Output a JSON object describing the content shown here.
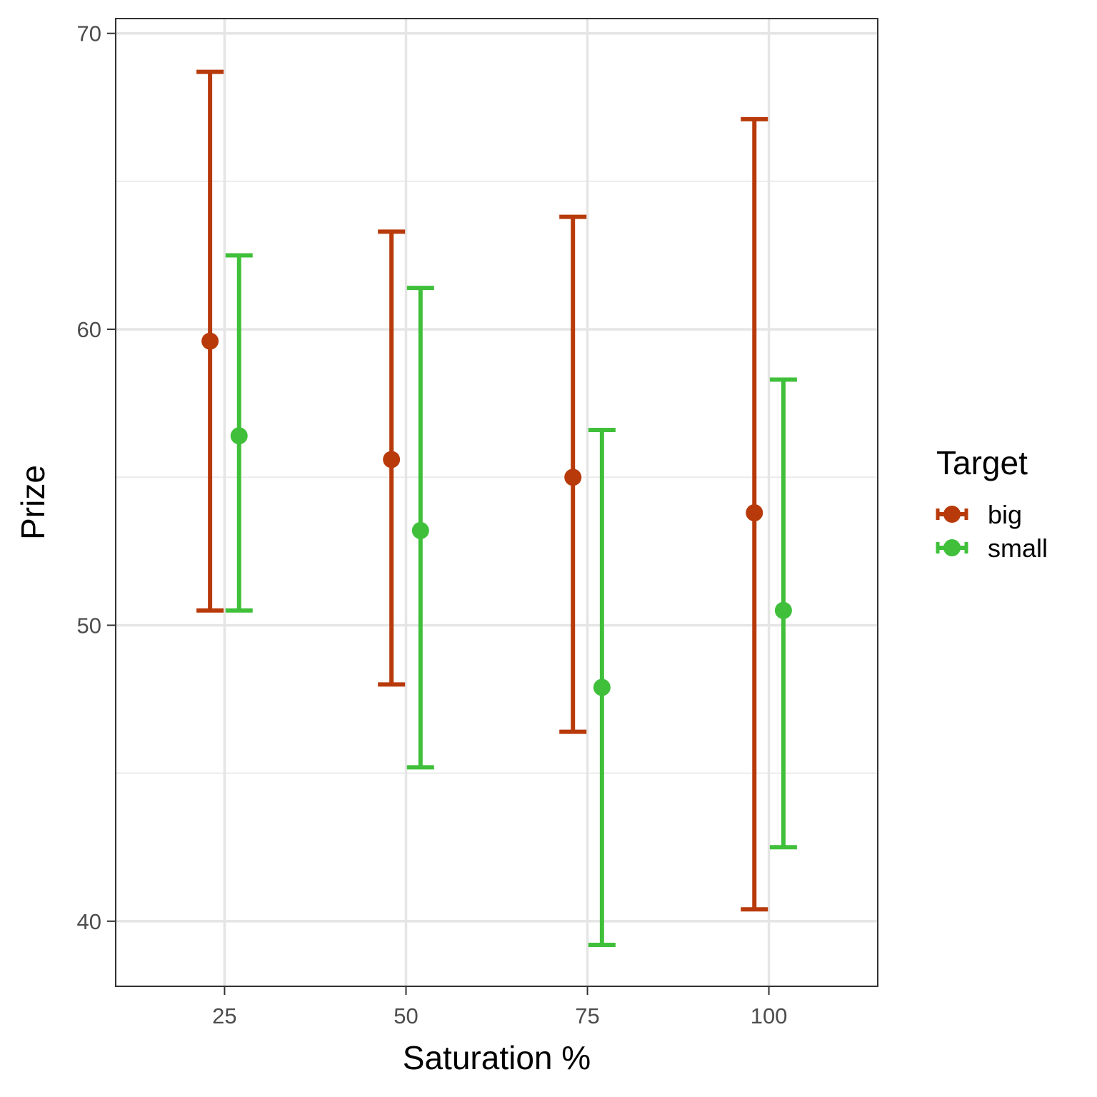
{
  "chart_data": {
    "type": "errorbar",
    "xlabel": "Saturation %",
    "ylabel": "Prize",
    "x_ticks": [
      25,
      50,
      75,
      100
    ],
    "y_ticks": [
      40,
      50,
      60,
      70
    ],
    "xlim": [
      10,
      115
    ],
    "ylim": [
      37.8,
      70.5
    ],
    "grid": true,
    "legend": {
      "title": "Target",
      "position": "right"
    },
    "series": [
      {
        "name": "big",
        "color": "#B83A0B",
        "points": [
          {
            "x": 25,
            "y": 59.6,
            "ymin": 50.5,
            "ymax": 68.7
          },
          {
            "x": 50,
            "y": 55.6,
            "ymin": 48.0,
            "ymax": 63.3
          },
          {
            "x": 75,
            "y": 55.0,
            "ymin": 46.4,
            "ymax": 63.8
          },
          {
            "x": 100,
            "y": 53.8,
            "ymin": 40.4,
            "ymax": 67.1
          }
        ]
      },
      {
        "name": "small",
        "color": "#40C03A",
        "points": [
          {
            "x": 25,
            "y": 56.4,
            "ymin": 50.5,
            "ymax": 62.5
          },
          {
            "x": 50,
            "y": 53.2,
            "ymin": 45.2,
            "ymax": 61.4
          },
          {
            "x": 75,
            "y": 47.9,
            "ymin": 39.2,
            "ymax": 56.6
          },
          {
            "x": 100,
            "y": 50.5,
            "ymin": 42.5,
            "ymax": 58.3
          }
        ]
      }
    ]
  }
}
